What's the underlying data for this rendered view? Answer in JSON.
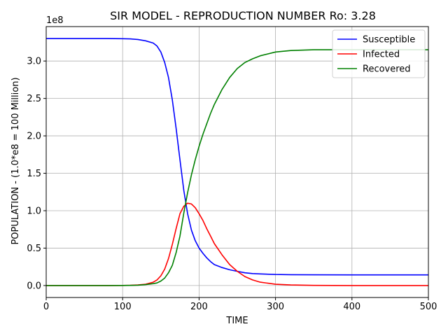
{
  "chart_data": {
    "type": "line",
    "title": "SIR MODEL - REPRODUCTION NUMBER Ro: 3.28",
    "xlabel": "TIME",
    "ylabel": "POPULATION - (1.0*e8 = 100 Million)",
    "y_offset_text": "1e8",
    "xlim": [
      0,
      500
    ],
    "ylim": [
      -0.16,
      3.46
    ],
    "x_ticks": [
      0,
      100,
      200,
      300,
      400,
      500
    ],
    "x_tick_labels": [
      "0",
      "100",
      "200",
      "300",
      "400",
      "500"
    ],
    "y_ticks": [
      0.0,
      0.5,
      1.0,
      1.5,
      2.0,
      2.5,
      3.0
    ],
    "y_tick_labels": [
      "0.0",
      "0.5",
      "1.0",
      "1.5",
      "2.0",
      "2.5",
      "3.0"
    ],
    "grid": true,
    "legend_position": "top-right",
    "x": [
      0,
      20,
      40,
      60,
      80,
      100,
      110,
      120,
      130,
      140,
      145,
      150,
      155,
      160,
      165,
      170,
      175,
      180,
      185,
      190,
      195,
      200,
      205,
      210,
      215,
      220,
      230,
      240,
      250,
      260,
      270,
      280,
      300,
      320,
      350,
      400,
      450,
      500
    ],
    "series": [
      {
        "name": "Susceptible",
        "color": "#0000ff",
        "values": [
          3.3,
          3.3,
          3.3,
          3.3,
          3.3,
          3.298,
          3.295,
          3.288,
          3.27,
          3.24,
          3.2,
          3.12,
          2.98,
          2.78,
          2.48,
          2.1,
          1.68,
          1.27,
          0.96,
          0.74,
          0.6,
          0.5,
          0.43,
          0.37,
          0.32,
          0.28,
          0.24,
          0.21,
          0.19,
          0.17,
          0.16,
          0.155,
          0.148,
          0.145,
          0.143,
          0.142,
          0.142,
          0.142
        ]
      },
      {
        "name": "Infected",
        "color": "#ff0000",
        "values": [
          0.0,
          0.0,
          0.0,
          0.0,
          0.0,
          0.001,
          0.003,
          0.007,
          0.018,
          0.045,
          0.075,
          0.13,
          0.22,
          0.36,
          0.55,
          0.76,
          0.96,
          1.06,
          1.1,
          1.09,
          1.04,
          0.96,
          0.87,
          0.76,
          0.66,
          0.56,
          0.41,
          0.28,
          0.19,
          0.12,
          0.075,
          0.045,
          0.017,
          0.007,
          0.002,
          0.0,
          0.0,
          0.0
        ]
      },
      {
        "name": "Recovered",
        "color": "#008000",
        "values": [
          0.0,
          0.0,
          0.0,
          0.0,
          0.0,
          0.001,
          0.002,
          0.005,
          0.012,
          0.025,
          0.035,
          0.06,
          0.1,
          0.17,
          0.27,
          0.44,
          0.66,
          0.97,
          1.24,
          1.48,
          1.68,
          1.86,
          2.02,
          2.16,
          2.3,
          2.42,
          2.62,
          2.78,
          2.9,
          2.98,
          3.03,
          3.07,
          3.12,
          3.14,
          3.15,
          3.15,
          3.15,
          3.15
        ]
      }
    ]
  }
}
